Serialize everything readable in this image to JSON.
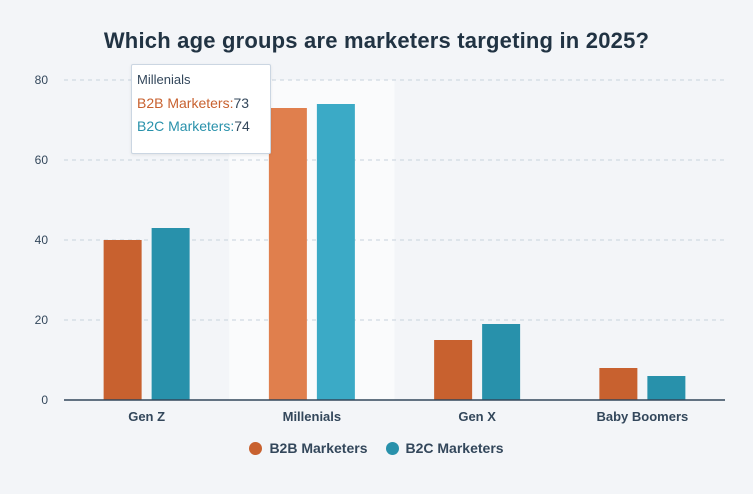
{
  "title": "Which age groups are marketers targeting in 2025?",
  "colors": {
    "b2b": "#c8612f",
    "b2c": "#2891ab",
    "b2b_hover": "#e07f4d",
    "b2c_hover": "#3baac6",
    "grid": "#c7d2dc",
    "axis": "#33475b"
  },
  "legend": {
    "b2b_label": "B2B Marketers",
    "b2c_label": "B2C Marketers"
  },
  "tooltip": {
    "category": "Millenials",
    "b2b_label": "B2B Marketers:",
    "b2b_value": "73",
    "b2c_label": "B2C Marketers:",
    "b2c_value": "74"
  },
  "chart_data": {
    "type": "bar",
    "title": "Which age groups are marketers targeting in 2025?",
    "categories": [
      "Gen Z",
      "Millenials",
      "Gen X",
      "Baby Boomers"
    ],
    "series": [
      {
        "name": "B2B Marketers",
        "values": [
          40,
          73,
          15,
          8
        ]
      },
      {
        "name": "B2C Marketers",
        "values": [
          43,
          74,
          19,
          6
        ]
      }
    ],
    "yticks": [
      0,
      20,
      40,
      60,
      80
    ],
    "ylim": [
      0,
      80
    ],
    "xlabel": "",
    "ylabel": "",
    "grid": true,
    "legend_position": "bottom",
    "highlighted_category": "Millenials"
  }
}
